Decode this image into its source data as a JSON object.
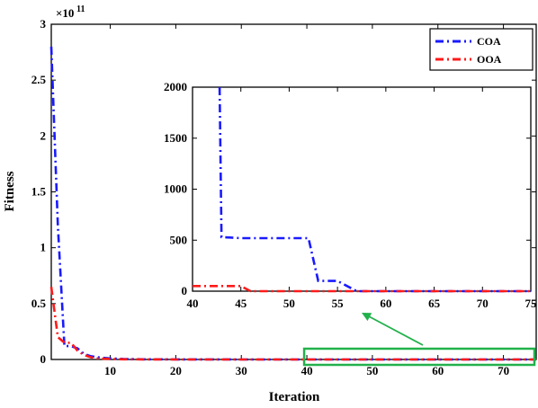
{
  "chart_data": [
    {
      "type": "line",
      "title": "",
      "xlabel": "Iteration",
      "ylabel": "Fitness",
      "y_exponent_label": "×10",
      "y_exponent_power": "11",
      "xlim": [
        1,
        75
      ],
      "ylim": [
        0,
        3
      ],
      "y_scale_factor": 100000000000.0,
      "x_ticks": [
        10,
        20,
        30,
        40,
        50,
        60,
        70
      ],
      "y_ticks": [
        0,
        0.5,
        1,
        1.5,
        2,
        2.5,
        3
      ],
      "legend": {
        "position": "top-right",
        "entries": [
          "COA",
          "OOA"
        ]
      },
      "series": [
        {
          "name": "COA",
          "color": "#1a1aff",
          "style": "dash-dot",
          "x": [
            1,
            2,
            3,
            4,
            5,
            6,
            7,
            8,
            10,
            12,
            15,
            20,
            30,
            40,
            50,
            60,
            70,
            75
          ],
          "y": [
            2.8,
            1.2,
            0.12,
            0.12,
            0.1,
            0.05,
            0.03,
            0.02,
            0.01,
            0.005,
            0.002,
            0.001,
            0,
            0,
            0,
            0,
            0,
            0
          ]
        },
        {
          "name": "OOA",
          "color": "#ff1a1a",
          "style": "dash-dot",
          "x": [
            1,
            2,
            3,
            4,
            5,
            6,
            7,
            8,
            10,
            12,
            15,
            20,
            30,
            40,
            50,
            60,
            70,
            75
          ],
          "y": [
            0.65,
            0.2,
            0.15,
            0.15,
            0.08,
            0.04,
            0.02,
            0.01,
            0.005,
            0.002,
            0.001,
            0,
            0,
            0,
            0,
            0,
            0,
            0
          ]
        }
      ]
    },
    {
      "type": "line",
      "title": "",
      "inset": true,
      "xlim": [
        40,
        75
      ],
      "ylim": [
        0,
        2000
      ],
      "x_ticks": [
        40,
        45,
        50,
        55,
        60,
        65,
        70,
        75
      ],
      "y_ticks": [
        0,
        500,
        1000,
        1500,
        2000
      ],
      "highlight_color": "#22b14c",
      "series": [
        {
          "name": "COA",
          "color": "#1a1aff",
          "style": "dash-dot",
          "x": [
            42.8,
            43,
            45,
            52,
            53,
            55,
            57,
            75
          ],
          "y": [
            2000,
            530,
            520,
            520,
            100,
            100,
            0,
            0
          ]
        },
        {
          "name": "OOA",
          "color": "#ff1a1a",
          "style": "dash-dot",
          "x": [
            40,
            45,
            46,
            75
          ],
          "y": [
            50,
            50,
            0,
            0
          ]
        }
      ]
    }
  ]
}
